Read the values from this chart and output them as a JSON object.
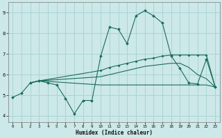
{
  "xlabel": "Humidex (Indice chaleur)",
  "bg_color": "#cce8e8",
  "grid_color": "#aad4d4",
  "line_color": "#1a6b5a",
  "plot_bg": "#cce8e8",
  "xlim": [
    -0.5,
    23.5
  ],
  "ylim": [
    3.7,
    9.5
  ],
  "xticks": [
    0,
    1,
    2,
    3,
    4,
    5,
    6,
    7,
    8,
    9,
    10,
    11,
    12,
    13,
    14,
    15,
    16,
    17,
    18,
    19,
    20,
    21,
    22,
    23
  ],
  "yticks": [
    4,
    5,
    6,
    7,
    8,
    9
  ],
  "line1_x": [
    0,
    1,
    2,
    3,
    4,
    5,
    6,
    7,
    8,
    9,
    10,
    11,
    12,
    13,
    14,
    15,
    16,
    17,
    18,
    19,
    20,
    21,
    22,
    23
  ],
  "line1_y": [
    4.9,
    5.1,
    5.6,
    5.7,
    5.6,
    5.5,
    4.85,
    4.1,
    4.75,
    4.75,
    6.9,
    8.3,
    8.2,
    7.5,
    8.85,
    9.1,
    8.85,
    8.5,
    6.9,
    6.3,
    5.6,
    5.55,
    6.75,
    5.4
  ],
  "line2_x": [
    2,
    3,
    10,
    11,
    12,
    13,
    14,
    15,
    16,
    17,
    18,
    19,
    20,
    21,
    22,
    23
  ],
  "line2_y": [
    5.6,
    5.7,
    6.2,
    6.35,
    6.45,
    6.55,
    6.65,
    6.75,
    6.8,
    6.9,
    6.95,
    6.95,
    6.95,
    6.95,
    6.95,
    5.4
  ],
  "line3_x": [
    2,
    3,
    10,
    11,
    12,
    13,
    14,
    15,
    16,
    17,
    18,
    19,
    20,
    21,
    22,
    23
  ],
  "line3_y": [
    5.6,
    5.7,
    5.9,
    6.0,
    6.1,
    6.2,
    6.3,
    6.4,
    6.45,
    6.5,
    6.55,
    6.55,
    6.35,
    6.0,
    5.8,
    5.4
  ],
  "line4_x": [
    2,
    3,
    10,
    11,
    12,
    13,
    14,
    15,
    16,
    17,
    18,
    19,
    20,
    21,
    22,
    23
  ],
  "line4_y": [
    5.6,
    5.7,
    5.5,
    5.5,
    5.5,
    5.5,
    5.5,
    5.5,
    5.5,
    5.5,
    5.5,
    5.5,
    5.5,
    5.5,
    5.5,
    5.4
  ]
}
